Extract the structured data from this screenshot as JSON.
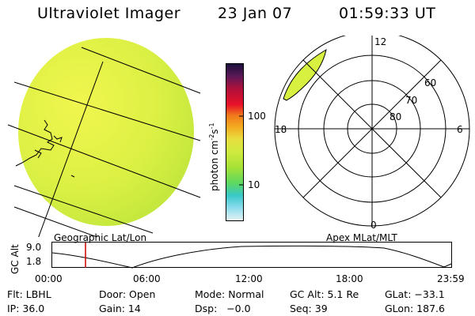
{
  "header": {
    "instrument": "Ultraviolet Imager",
    "date": "23 Jan 07",
    "time": "01:59:33 UT"
  },
  "colors": {
    "disk_fill": "#d2ee40",
    "disk_bright": "#eef64a",
    "oval_fill": "#d8f040",
    "time_marker": "#cc0000"
  },
  "colorbar": {
    "units": "photon cm",
    "units_sup1": "-2",
    "units_mid": "s",
    "units_sup2": "-1",
    "ticks": [
      "100",
      "10"
    ],
    "colors": [
      "#1a0f3a",
      "#5a1858",
      "#b0103a",
      "#e8102a",
      "#f07a1a",
      "#f4a820",
      "#e8de40",
      "#d0ea40",
      "#a6e236",
      "#5cd860",
      "#38c8c8",
      "#90dcee",
      "#e8f4f4"
    ]
  },
  "geo_panel": {
    "label": "Geographic Lat/Lon"
  },
  "apex_panel": {
    "label": "Apex MLat/MLT",
    "mlt_labels": [
      "12",
      "6",
      "0",
      "18"
    ],
    "mlat_labels": [
      "80",
      "70",
      "60"
    ]
  },
  "altitude_plot": {
    "ylabel": "GC Alt",
    "ymax": "9.0",
    "ymin": "1.8",
    "x_ticks": [
      "00:00",
      "06:00",
      "12:00",
      "18:00",
      "23:59"
    ],
    "current_time_hours": 2.0
  },
  "info": {
    "flt": "Flt: LBHL",
    "door": "Door: Open",
    "mode": "Mode: Normal",
    "gc_alt": "GC Alt: 5.1 Re",
    "glat": "GLat: −33.1",
    "ip": "IP: 36.0",
    "gain": "Gain: 14",
    "dsp": "Dsp:   −0.0",
    "seq": "Seq: 39",
    "glon": "GLon: 187.6"
  }
}
